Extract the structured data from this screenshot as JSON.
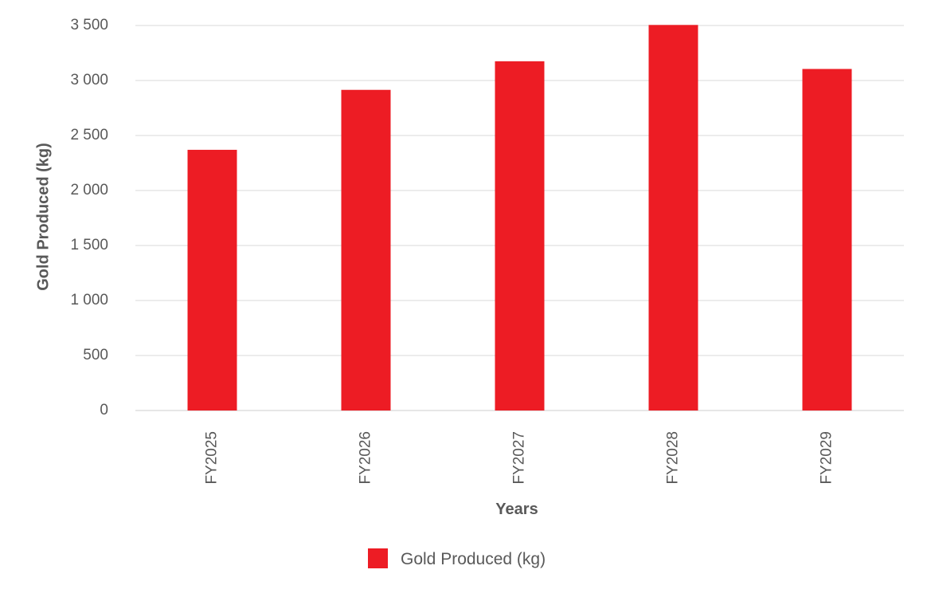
{
  "chart_data": {
    "type": "bar",
    "categories": [
      "FY2025",
      "FY2026",
      "FY2027",
      "FY2028",
      "FY2029"
    ],
    "series": [
      {
        "name": "Gold Produced (kg)",
        "values": [
          2370,
          2915,
          3175,
          3505,
          3105
        ],
        "color": "#ED1C24"
      }
    ],
    "y_ticks": [
      "0",
      "500",
      "1 000",
      "1 500",
      "2 000",
      "2 500",
      "3 000",
      "3 500"
    ],
    "xlabel": "Years",
    "ylabel": "Gold Produced (kg)",
    "ylim": [
      0,
      3500
    ],
    "grid": true,
    "grid_color": "#E6E6E6",
    "legend_position": "bottom"
  }
}
